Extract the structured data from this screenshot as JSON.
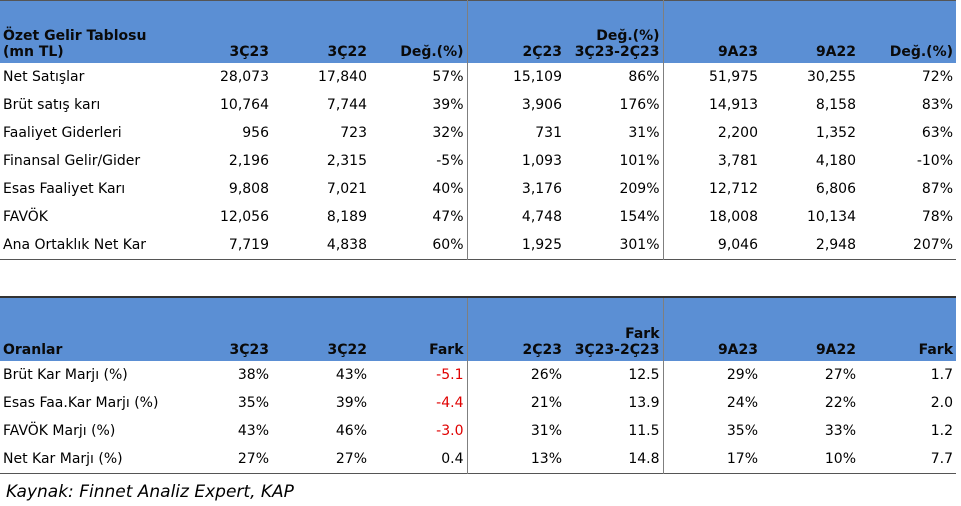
{
  "income": {
    "header": {
      "title_line1": "Özet Gelir Tablosu",
      "title_line2": "(mn TL)",
      "col1": "3Ç23",
      "col2": "3Ç22",
      "col3": "Değ.(%)",
      "col4": "2Ç23",
      "col5_line1": "Değ.(%)",
      "col5_line2": "3Ç23-2Ç23",
      "col6": "9A23",
      "col7": "9A22",
      "col8": "Değ.(%)"
    },
    "rows": [
      {
        "label": "Net Satışlar",
        "v": [
          "28,073",
          "17,840",
          "57%",
          "15,109",
          "86%",
          "51,975",
          "30,255",
          "72%"
        ]
      },
      {
        "label": "Brüt satış karı",
        "v": [
          "10,764",
          "7,744",
          "39%",
          "3,906",
          "176%",
          "14,913",
          "8,158",
          "83%"
        ]
      },
      {
        "label": "Faaliyet Giderleri",
        "v": [
          "956",
          "723",
          "32%",
          "731",
          "31%",
          "2,200",
          "1,352",
          "63%"
        ]
      },
      {
        "label": "Finansal Gelir/Gider",
        "v": [
          "2,196",
          "2,315",
          "-5%",
          "1,093",
          "101%",
          "3,781",
          "4,180",
          "-10%"
        ]
      },
      {
        "label": "Esas Faaliyet Karı",
        "v": [
          "9,808",
          "7,021",
          "40%",
          "3,176",
          "209%",
          "12,712",
          "6,806",
          "87%"
        ]
      },
      {
        "label": "FAVÖK",
        "v": [
          "12,056",
          "8,189",
          "47%",
          "4,748",
          "154%",
          "18,008",
          "10,134",
          "78%"
        ]
      },
      {
        "label": "Ana Ortaklık Net Kar",
        "v": [
          "7,719",
          "4,838",
          "60%",
          "1,925",
          "301%",
          "9,046",
          "2,948",
          "207%"
        ]
      }
    ]
  },
  "ratios": {
    "header": {
      "title": "Oranlar",
      "col1": "3Ç23",
      "col2": "3Ç22",
      "col3": "Fark",
      "col4": "2Ç23",
      "col5_line1": "Fark",
      "col5_line2": "3Ç23-2Ç23",
      "col6": "9A23",
      "col7": "9A22",
      "col8": "Fark"
    },
    "rows": [
      {
        "label": "Brüt Kar Marjı (%)",
        "v": [
          "38%",
          "43%",
          "-5.1",
          "26%",
          "12.5",
          "29%",
          "27%",
          "1.7"
        ]
      },
      {
        "label": "Esas Faa.Kar Marjı (%)",
        "v": [
          "35%",
          "39%",
          "-4.4",
          "21%",
          "13.9",
          "24%",
          "22%",
          "2.0"
        ]
      },
      {
        "label": "FAVÖK Marjı (%)",
        "v": [
          "43%",
          "46%",
          "-3.0",
          "31%",
          "11.5",
          "35%",
          "33%",
          "1.2"
        ]
      },
      {
        "label": "Net Kar Marjı (%)",
        "v": [
          "27%",
          "27%",
          "0.4",
          "13%",
          "14.8",
          "17%",
          "10%",
          "7.7"
        ]
      }
    ]
  },
  "source": "Kaynak: Finnet Analiz Expert, KAP",
  "colors": {
    "header_bg": "#5b8fd4",
    "negative": "#e00000"
  }
}
